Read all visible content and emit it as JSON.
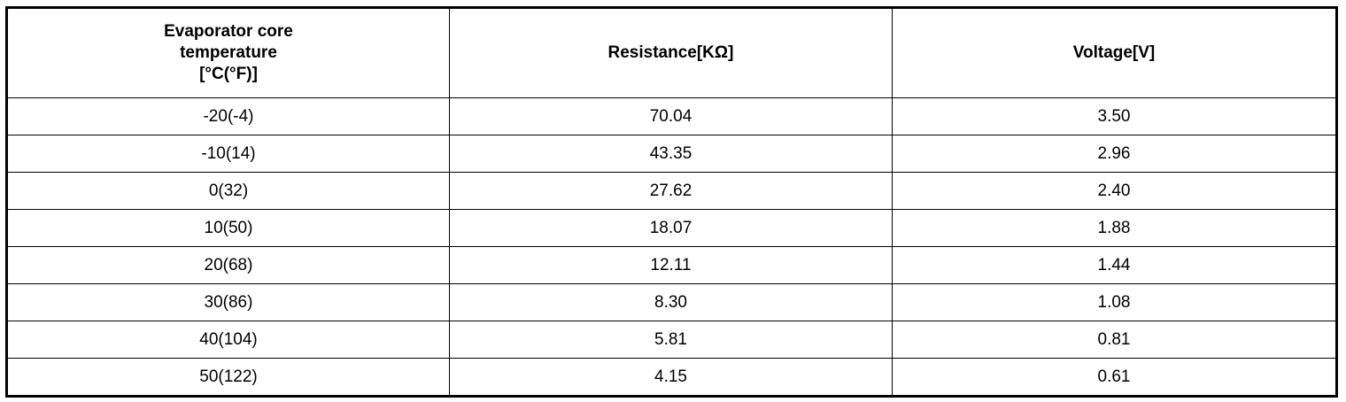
{
  "table": {
    "header": [
      "Evaporator core temperature [°C(°F)]",
      "Resistance[KΩ]",
      "Voltage[V]"
    ],
    "rows": [
      [
        "-20(-4)",
        "70.04",
        "3.50"
      ],
      [
        "-10(14)",
        "43.35",
        "2.96"
      ],
      [
        "0(32)",
        "27.62",
        "2.40"
      ],
      [
        "10(50)",
        "18.07",
        "1.88"
      ],
      [
        "20(68)",
        "12.11",
        "1.44"
      ],
      [
        "30(86)",
        "8.30",
        "1.08"
      ],
      [
        "40(104)",
        "5.81",
        "0.81"
      ],
      [
        "50(122)",
        "4.15",
        "0.61"
      ]
    ]
  }
}
